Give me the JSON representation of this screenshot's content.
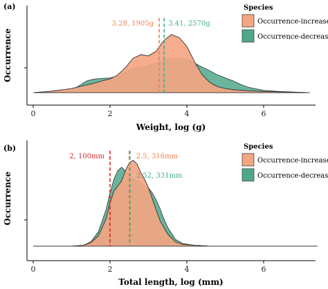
{
  "chart_data": [
    {
      "type": "area",
      "panel_label": "(a)",
      "xlabel": "Weight, log (g)",
      "ylabel": "Occurrence",
      "xlim": [
        -0.5,
        7.6
      ],
      "x_ticks": [
        "0",
        "2",
        "4",
        "6"
      ],
      "legend_title": "Species",
      "legend_position": "top-right",
      "series": [
        {
          "name": "Occurrence-increased",
          "color": "#f4a582",
          "x": [
            0.0,
            0.4,
            0.8,
            1.0,
            1.2,
            1.4,
            1.6,
            1.8,
            2.0,
            2.2,
            2.4,
            2.6,
            2.8,
            3.0,
            3.2,
            3.4,
            3.6,
            3.8,
            4.0,
            4.2,
            4.4,
            4.6,
            4.8,
            5.0,
            5.2,
            5.6,
            6.0,
            6.6,
            7.2
          ],
          "y": [
            0.0,
            0.02,
            0.05,
            0.07,
            0.1,
            0.13,
            0.16,
            0.2,
            0.23,
            0.3,
            0.42,
            0.58,
            0.64,
            0.62,
            0.7,
            0.88,
            0.98,
            0.93,
            0.78,
            0.52,
            0.3,
            0.17,
            0.1,
            0.07,
            0.05,
            0.03,
            0.02,
            0.01,
            0.0
          ]
        },
        {
          "name": "Occurrence-decreased",
          "color": "#4fa88c",
          "x": [
            0.0,
            0.4,
            0.8,
            1.0,
            1.2,
            1.4,
            1.6,
            1.8,
            2.0,
            2.2,
            2.4,
            2.6,
            2.8,
            3.0,
            3.2,
            3.4,
            3.6,
            3.8,
            4.0,
            4.2,
            4.4,
            4.6,
            4.8,
            5.0,
            5.2,
            5.4,
            5.6,
            6.0,
            6.4,
            6.8,
            7.2
          ],
          "y": [
            0.0,
            0.01,
            0.02,
            0.04,
            0.12,
            0.2,
            0.23,
            0.24,
            0.25,
            0.28,
            0.34,
            0.4,
            0.43,
            0.45,
            0.5,
            0.55,
            0.57,
            0.58,
            0.56,
            0.5,
            0.43,
            0.37,
            0.3,
            0.25,
            0.2,
            0.14,
            0.09,
            0.04,
            0.02,
            0.01,
            0.0
          ]
        }
      ],
      "mean_lines": [
        {
          "series": "Occurrence-increased",
          "x": 3.28,
          "label": "3.28, 1905g",
          "color": "#f08050"
        },
        {
          "series": "Occurrence-decreased",
          "x": 3.41,
          "label": "3.41, 2570g",
          "color": "#3fae8e"
        }
      ]
    },
    {
      "type": "area",
      "panel_label": "(b)",
      "xlabel": "Total length, log (mm)",
      "ylabel": "Occurrence",
      "xlim": [
        -0.5,
        7.6
      ],
      "x_ticks": [
        "0",
        "2",
        "4",
        "6"
      ],
      "legend_title": "Species",
      "legend_position": "top-right",
      "series": [
        {
          "name": "Occurrence-increased",
          "color": "#f4a582",
          "x": [
            0.0,
            1.0,
            1.3,
            1.5,
            1.7,
            1.9,
            2.0,
            2.1,
            2.2,
            2.3,
            2.4,
            2.5,
            2.6,
            2.7,
            2.8,
            2.9,
            3.0,
            3.1,
            3.2,
            3.3,
            3.5,
            3.7,
            3.9,
            4.2,
            4.6,
            7.4
          ],
          "y": [
            0.0,
            0.0,
            0.01,
            0.04,
            0.12,
            0.32,
            0.5,
            0.64,
            0.7,
            0.76,
            0.88,
            0.97,
            1.0,
            0.96,
            0.86,
            0.78,
            0.68,
            0.55,
            0.42,
            0.3,
            0.14,
            0.05,
            0.02,
            0.01,
            0.0,
            0.0
          ]
        },
        {
          "name": "Occurrence-decreased",
          "color": "#4fa88c",
          "x": [
            0.0,
            1.0,
            1.3,
            1.5,
            1.7,
            1.9,
            2.0,
            2.1,
            2.2,
            2.3,
            2.4,
            2.5,
            2.6,
            2.7,
            2.8,
            2.9,
            3.0,
            3.1,
            3.2,
            3.3,
            3.4,
            3.5,
            3.7,
            3.9,
            4.2,
            4.6,
            7.4
          ],
          "y": [
            0.0,
            0.0,
            0.01,
            0.05,
            0.17,
            0.43,
            0.62,
            0.78,
            0.88,
            0.92,
            0.88,
            0.82,
            0.78,
            0.77,
            0.74,
            0.7,
            0.68,
            0.62,
            0.54,
            0.44,
            0.32,
            0.22,
            0.08,
            0.03,
            0.01,
            0.0,
            0.0
          ]
        }
      ],
      "mean_lines": [
        {
          "series": "Occurrence-increased",
          "x": 2.5,
          "label": "2.5, 316mm",
          "color": "#f08050"
        },
        {
          "series": "Occurrence-decreased",
          "x": 2.52,
          "label": "2.52, 331mm",
          "color": "#3fae8e"
        },
        {
          "series": "",
          "x": 2.0,
          "label": "2, 100mm",
          "color": "#d62728"
        }
      ]
    }
  ]
}
